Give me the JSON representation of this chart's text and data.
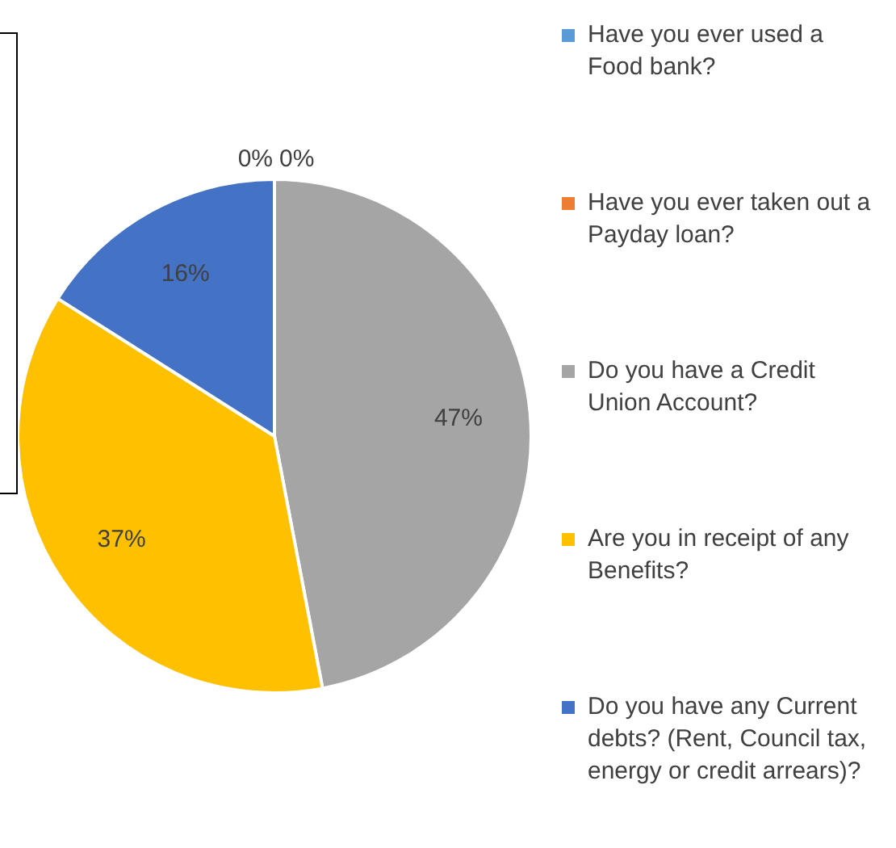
{
  "chart_data": {
    "type": "pie",
    "categories": [
      "Have you ever used a Food bank?",
      "Have you ever taken out a Payday loan?",
      "Do you have a Credit Union Account?",
      "Are you in receipt of any Benefits?",
      "Do you have any Current debts? (Rent, Council tax, energy or credit arrears)?"
    ],
    "values": [
      0,
      0,
      47,
      37,
      16
    ],
    "colors": [
      "#5b9bd5",
      "#ed7d31",
      "#a5a5a5",
      "#ffc000",
      "#4472c4"
    ],
    "value_labels": [
      "0%",
      "0%",
      "47%",
      "37%",
      "16%"
    ],
    "legend": "right"
  }
}
